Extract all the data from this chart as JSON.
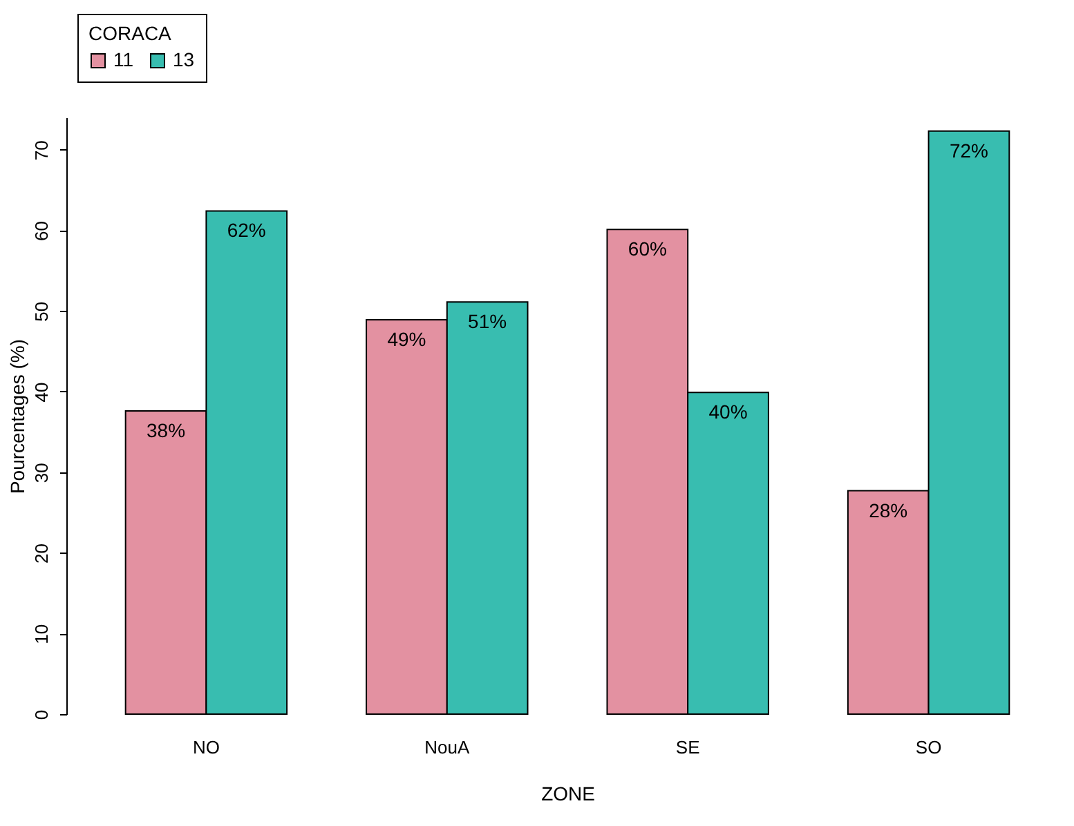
{
  "chart_data": {
    "type": "bar",
    "xlabel": "ZONE",
    "ylabel": "Pourcentages (%)",
    "legend_title": "CORACA",
    "legend": "top left",
    "categories": [
      "NO",
      "NouA",
      "SE",
      "SO"
    ],
    "series": [
      {
        "name": "11",
        "color": "#e391a1",
        "values": [
          37.6,
          48.9,
          60.1,
          27.7
        ],
        "value_labels": [
          "38%",
          "49%",
          "60%",
          "28%"
        ]
      },
      {
        "name": "13",
        "color": "#38bdb0",
        "values": [
          62.4,
          51.1,
          39.9,
          72.3
        ],
        "value_labels": [
          "62%",
          "51%",
          "40%",
          "72%"
        ]
      }
    ],
    "ylim": [
      0,
      74
    ],
    "yticks": [
      0,
      10,
      20,
      30,
      40,
      50,
      60,
      70
    ],
    "grid": false
  }
}
